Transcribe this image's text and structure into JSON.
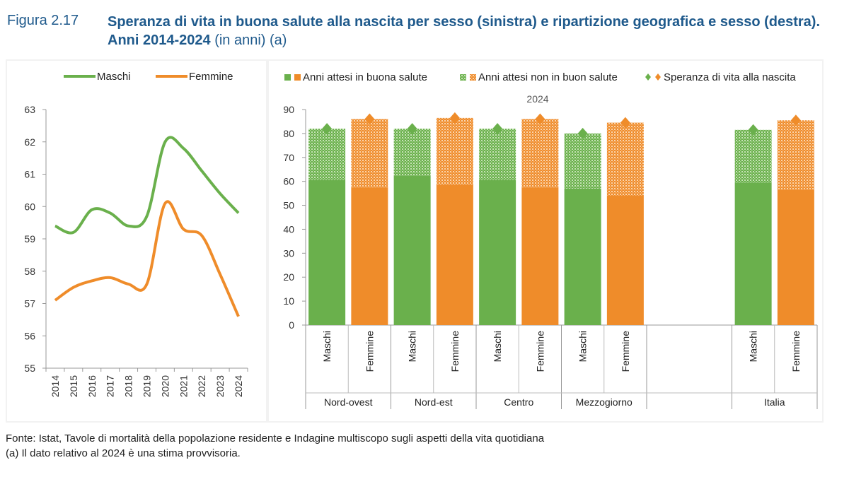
{
  "figure": {
    "number": "Figura 2.17",
    "title_main": "Speranza di vita in buona salute alla nascita per sesso (sinistra) e ripartizione geografica e sesso (destra). Anni 2014-2024",
    "title_unit": "(in anni) (a)"
  },
  "notes": {
    "source": "Fonte: Istat, Tavole di mortalità della popolazione residente e Indagine multiscopo sugli aspetti della vita quotidiana",
    "footnote": "(a) Il dato relativo al 2024 è una stima provvisoria."
  },
  "chart_data": [
    {
      "type": "line",
      "x": [
        "2014",
        "2015",
        "2016",
        "2017",
        "2018",
        "2019",
        "2020",
        "2021",
        "2022",
        "2023",
        "2024"
      ],
      "series": [
        {
          "name": "Maschi",
          "color": "#6ab04c",
          "values": [
            59.4,
            59.2,
            59.9,
            59.8,
            59.4,
            59.7,
            62.0,
            61.8,
            61.1,
            60.4,
            59.8
          ]
        },
        {
          "name": "Femmine",
          "color": "#ef8c2a",
          "values": [
            57.1,
            57.5,
            57.7,
            57.8,
            57.6,
            57.6,
            60.1,
            59.3,
            59.1,
            57.9,
            56.6
          ]
        }
      ],
      "ylim": [
        55,
        63
      ],
      "yticks": [
        55,
        56,
        57,
        58,
        59,
        60,
        61,
        62,
        63
      ],
      "legend_position": "top"
    },
    {
      "type": "bar",
      "subtitle": "2024",
      "groups": [
        {
          "name": "Nord-ovest",
          "bars": [
            {
              "label": "Maschi",
              "sex": "M",
              "good_health": 60.5,
              "life_expectancy": 82.0
            },
            {
              "label": "Femmine",
              "sex": "F",
              "good_health": 57.5,
              "life_expectancy": 86.0
            }
          ]
        },
        {
          "name": "Nord-est",
          "bars": [
            {
              "label": "Maschi",
              "sex": "M",
              "good_health": 62.5,
              "life_expectancy": 82.0
            },
            {
              "label": "Femmine",
              "sex": "F",
              "good_health": 58.5,
              "life_expectancy": 86.5
            }
          ]
        },
        {
          "name": "Centro",
          "bars": [
            {
              "label": "Maschi",
              "sex": "M",
              "good_health": 60.5,
              "life_expectancy": 82.0
            },
            {
              "label": "Femmine",
              "sex": "F",
              "good_health": 57.5,
              "life_expectancy": 86.0
            }
          ]
        },
        {
          "name": "Mezzogiorno",
          "bars": [
            {
              "label": "Maschi",
              "sex": "M",
              "good_health": 57.0,
              "life_expectancy": 80.0
            },
            {
              "label": "Femmine",
              "sex": "F",
              "good_health": 54.0,
              "life_expectancy": 84.5
            }
          ]
        },
        {
          "name": "",
          "bars": []
        },
        {
          "name": "Italia",
          "bars": [
            {
              "label": "Maschi",
              "sex": "M",
              "good_health": 59.5,
              "life_expectancy": 81.5
            },
            {
              "label": "Femmine",
              "sex": "F",
              "good_health": 56.5,
              "life_expectancy": 85.5
            }
          ]
        }
      ],
      "legend": [
        {
          "label": "Anni attesi in buona salute",
          "kind": "solid"
        },
        {
          "label": "Anni attesi non in buon salute",
          "kind": "dotted"
        },
        {
          "label": "Speranza di vita alla nascita",
          "kind": "diamond"
        }
      ],
      "colors": {
        "male": "#6ab04c",
        "female": "#ef8c2a"
      },
      "ylim": [
        0,
        90
      ],
      "yticks": [
        0,
        10,
        20,
        30,
        40,
        50,
        60,
        70,
        80,
        90
      ],
      "legend_position": "top"
    }
  ]
}
